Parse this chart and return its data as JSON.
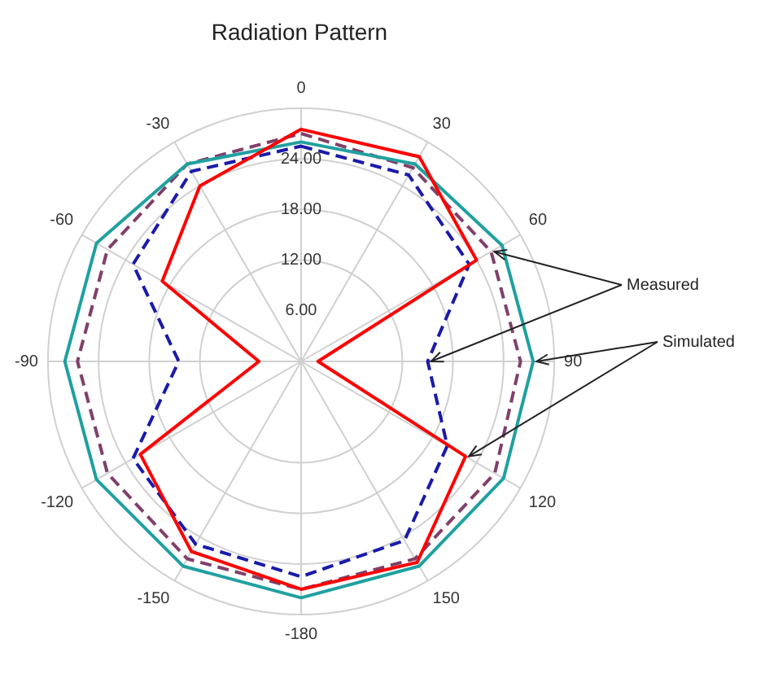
{
  "chart_data": {
    "type": "radar",
    "title": "Radiation Pattern",
    "categories": [
      "0",
      "30",
      "60",
      "90",
      "120",
      "150",
      "-180",
      "-150",
      "-120",
      "-90",
      "-60",
      "-30"
    ],
    "series": [
      {
        "color": "#ff0000",
        "line_style": "solid",
        "values": [
          27.5,
          28,
          24,
          2,
          22.5,
          27.5,
          27,
          26,
          22,
          5,
          19,
          24
        ]
      },
      {
        "color": "#1a1aaa",
        "line_style": "dashed",
        "values": [
          25.5,
          25.5,
          23,
          15,
          20,
          24.5,
          25.5,
          25,
          23,
          14.5,
          23,
          26
        ]
      },
      {
        "color": "#20a0a0",
        "line_style": "solid",
        "values": [
          26,
          27,
          27.5,
          27.5,
          27.7,
          28,
          28,
          28,
          28,
          28,
          28,
          27
        ]
      },
      {
        "color": "#80406a",
        "line_style": "dashed",
        "values": [
          27,
          26.5,
          26,
          26,
          26.5,
          27,
          27,
          27,
          26.5,
          26.5,
          26.5,
          27
        ]
      }
    ],
    "ylim": [
      0,
      30
    ],
    "yticks": [
      {
        "value": 6,
        "label": "6.00"
      },
      {
        "value": 12,
        "label": "12.00"
      },
      {
        "value": 18,
        "label": "18.00"
      },
      {
        "value": 24,
        "label": "24.00"
      }
    ],
    "grid": true,
    "legend": false,
    "marker": "none",
    "annotations": [
      "Measured",
      "Simulated"
    ]
  }
}
